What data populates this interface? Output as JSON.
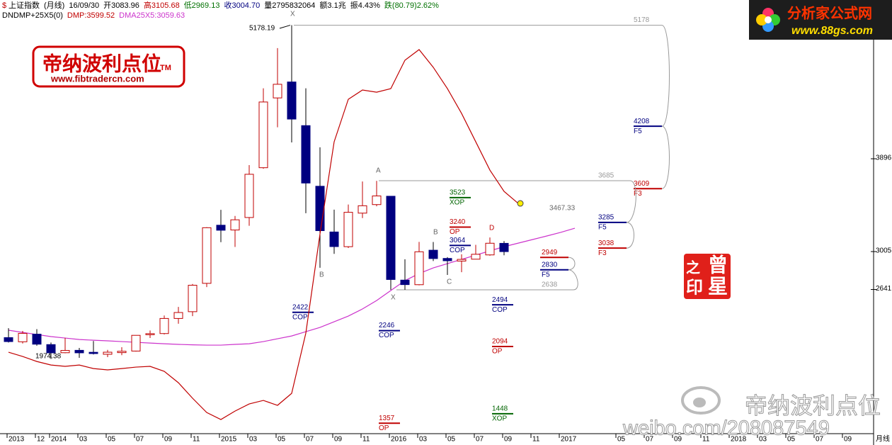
{
  "chart_data": {
    "type": "candlestick",
    "symbol": "$",
    "header": [
      {
        "text": "上证指数",
        "color": "#000000"
      },
      {
        "text": "(月线)",
        "color": "#000000"
      },
      {
        "text": "16/09/30",
        "color": "#000000"
      },
      {
        "text": "开3083.96",
        "color": "#000000"
      },
      {
        "text": "高3105.68",
        "color": "#c00000"
      },
      {
        "text": "低2969.13",
        "color": "#007000"
      },
      {
        "text": "收3004.70",
        "color": "#000080"
      },
      {
        "text": "量2795832064",
        "color": "#000000"
      },
      {
        "text": "额3.1兆",
        "color": "#000000"
      },
      {
        "text": "振4.43%",
        "color": "#000000"
      },
      {
        "text": "跌(80.79)2.62%",
        "color": "#007000"
      }
    ],
    "indicator": [
      {
        "text": "DNDMP+25X5(0)",
        "color": "#000000"
      },
      {
        "text": "DMP:3599.52",
        "color": "#c00000"
      },
      {
        "text": "DMA25X5:3059.63",
        "color": "#cc33cc"
      }
    ],
    "categories": [
      "2013",
      null,
      "12",
      "2014",
      null,
      "03",
      null,
      "05",
      null,
      "07",
      null,
      "09",
      null,
      "11",
      null,
      "2015",
      null,
      "03",
      null,
      "05",
      null,
      "07",
      null,
      "09",
      null,
      "11",
      null,
      "2016",
      null,
      "03",
      null,
      "05",
      null,
      "07",
      null,
      "09",
      null,
      "11",
      null,
      "2017",
      null,
      null,
      null,
      "05",
      null,
      "07",
      null,
      "09",
      null,
      "11",
      null,
      "2018",
      null,
      "03",
      null,
      "05",
      null,
      "07",
      null,
      "09"
    ],
    "x_unit": "月线",
    "open": [
      2179,
      2139,
      2212,
      2112,
      2034,
      2057,
      2038,
      2019,
      2035,
      2050,
      2207,
      2218,
      2363,
      2428,
      2700,
      3258,
      3212,
      3332,
      3810,
      4480,
      4633,
      4214,
      3632,
      3193,
      3052,
      3374,
      3456,
      3536,
      2731,
      2687,
      3018,
      2939,
      2914,
      2932,
      2973,
      3083.96,
      null,
      null,
      null,
      null,
      null,
      null,
      null,
      null,
      null,
      null,
      null,
      null,
      null,
      null,
      null,
      null,
      null,
      null,
      null,
      null,
      null,
      null,
      null,
      null
    ],
    "high": [
      2270,
      2243,
      2260,
      2132,
      2177,
      2080,
      2146,
      2061,
      2087,
      2202,
      2248,
      2391,
      2474,
      2694,
      3239,
      3406,
      3347,
      3835,
      4572,
      4958,
      5178.19,
      4572,
      4006,
      3407,
      3457,
      3678,
      3684,
      3538,
      2931,
      3098,
      3097,
      2952,
      2979,
      3070,
      3140,
      3105.68,
      null,
      null,
      null,
      null,
      null,
      null,
      null,
      null,
      null,
      null,
      null,
      null,
      null,
      null,
      null,
      null,
      null,
      null,
      null,
      null,
      null,
      null,
      null,
      null
    ],
    "low": [
      2132,
      2123,
      2101,
      1974.38,
      2029,
      1985,
      2017,
      1992,
      2010,
      2045,
      2175,
      2209,
      2312,
      2385,
      2664,
      3095,
      3049,
      3253,
      3800,
      4198,
      4053,
      3373,
      2850,
      2983,
      3039,
      3327,
      3440,
      2638,
      2638,
      2681,
      2914,
      2781,
      2807,
      2932,
      2965,
      2969.13,
      null,
      null,
      null,
      null,
      null,
      null,
      null,
      null,
      null,
      null,
      null,
      null,
      null,
      null,
      null,
      null,
      null,
      null,
      null,
      null,
      null,
      null,
      null,
      null
    ],
    "close": [
      2141,
      2220,
      2116,
      2033,
      2056,
      2033,
      2026,
      2039,
      2048,
      2201,
      2217,
      2363,
      2420,
      2682,
      3234,
      3210,
      3310,
      3747,
      4441,
      4611,
      4277,
      3663,
      3206,
      3053,
      3382,
      3445,
      3539,
      2737,
      2688,
      3003,
      2938,
      2917,
      2930,
      2979,
      3085,
      3004.7,
      null,
      null,
      null,
      null,
      null,
      null,
      null,
      null,
      null,
      null,
      null,
      null,
      null,
      null,
      null,
      null,
      null,
      null,
      null,
      null,
      null,
      null,
      null,
      null
    ],
    "up_color": "#c00000",
    "down_color": "#000080",
    "series": [
      {
        "color": "#c00000",
        "values": [
          2039,
          1998,
          1950,
          1916,
          1903,
          1916,
          1882,
          1869,
          1882,
          1896,
          1903,
          1855,
          1746,
          1597,
          1460,
          1393,
          1474,
          1542,
          1576,
          1529,
          1644,
          2222,
          3175,
          4059,
          4467,
          4556,
          4535,
          4569,
          4842,
          4944,
          4774,
          4569,
          4331,
          4059,
          3787,
          3583,
          3467.33,
          null,
          null,
          null,
          null,
          null,
          null,
          null,
          null,
          null,
          null,
          null,
          null,
          null,
          null,
          null,
          null,
          null,
          null,
          null,
          null,
          null,
          null,
          null
        ]
      },
      {
        "color": "#cc33cc",
        "values": [
          2250,
          2229,
          2209,
          2189,
          2175,
          2161,
          2154,
          2148,
          2141,
          2134,
          2127,
          2120,
          2114,
          2110,
          2107,
          2107,
          2114,
          2120,
          2141,
          2168,
          2195,
          2236,
          2277,
          2331,
          2386,
          2454,
          2535,
          2631,
          2726,
          2794,
          2848,
          2889,
          2930,
          2971,
          3012,
          3052,
          3086,
          3120,
          3154,
          3189,
          3229,
          null,
          null,
          null,
          null,
          null,
          null,
          null,
          null,
          null,
          null,
          null,
          null,
          null,
          null,
          null,
          null,
          null,
          null,
          null
        ]
      }
    ],
    "ylim": [
      1257,
      5420
    ],
    "yticks": [
      2641,
      3005,
      3896
    ],
    "fib_levels": [
      {
        "value": 5178,
        "color": "#999999"
      },
      {
        "value": 4208,
        "tag": "F5",
        "color": "#000080"
      },
      {
        "value": 3609,
        "tag": "F3",
        "color": "#c00000"
      },
      {
        "value": 3685,
        "color": "#999999"
      },
      {
        "value": 3285,
        "tag": "F5",
        "color": "#000080"
      },
      {
        "value": 3038,
        "tag": "F3",
        "color": "#c00000"
      },
      {
        "value": 2949,
        "color": "#c00000"
      },
      {
        "value": 2830,
        "tag": "F5",
        "color": "#000080"
      },
      {
        "value": 2638,
        "color": "#999999"
      }
    ],
    "projections": [
      {
        "value": 3523,
        "tag": "XOP",
        "color": "#006400"
      },
      {
        "value": 3240,
        "tag": "OP",
        "color": "#c00000"
      },
      {
        "value": 3064,
        "tag": "COP",
        "color": "#000080"
      },
      {
        "value": 2422,
        "tag": "COP",
        "color": "#000080"
      },
      {
        "value": 2246,
        "tag": "COP",
        "color": "#000080"
      },
      {
        "value": 2494,
        "tag": "COP",
        "color": "#000080"
      },
      {
        "value": 2094,
        "tag": "OP",
        "color": "#c00000"
      },
      {
        "value": 1357,
        "tag": "OP",
        "color": "#c00000"
      },
      {
        "value": 1448,
        "tag": "XOP",
        "color": "#006400"
      }
    ],
    "point_labels": [
      "X",
      "A",
      "B",
      "X",
      "B",
      "C",
      "D"
    ]
  },
  "logo_left": {
    "name": "帝纳波利点位",
    "tm": "TM",
    "url": "www.fibtradercn.com"
  },
  "logo_right": {
    "name": "分析家公式网",
    "url": "www.88gs.com"
  },
  "stamp": [
    "之",
    "曾",
    "印",
    "星"
  ],
  "watermark": {
    "name": "帝纳波利点位",
    "url": "weibo.com/208087549"
  }
}
